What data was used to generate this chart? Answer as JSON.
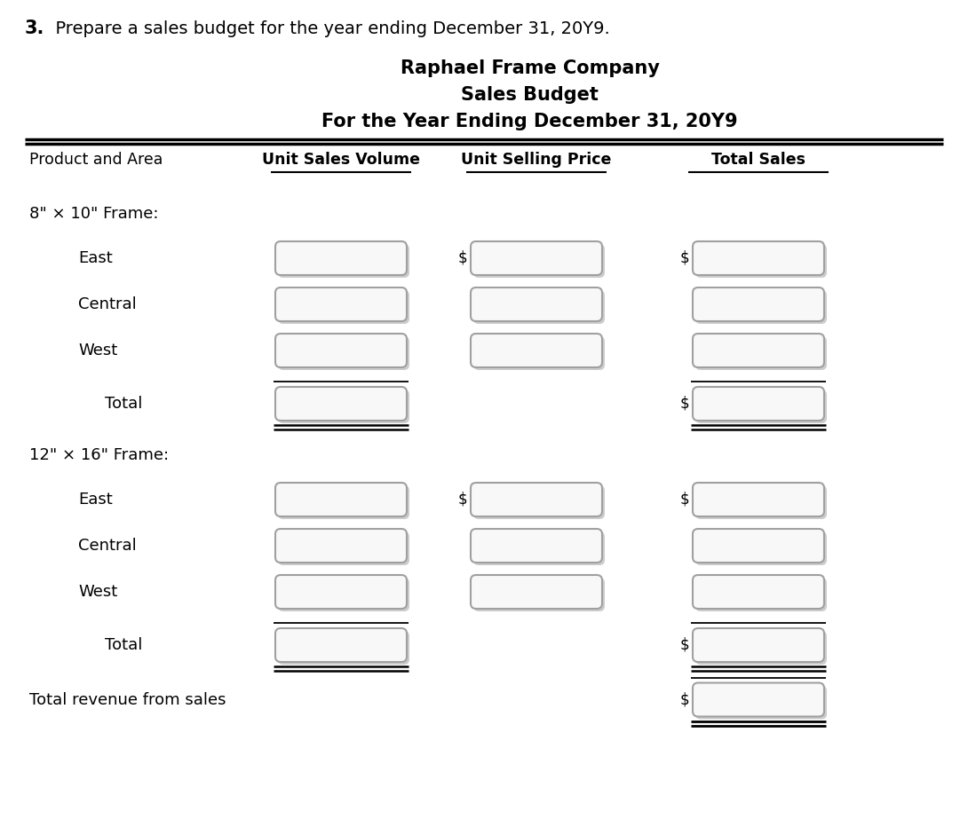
{
  "title1": "Raphael Frame Company",
  "title2": "Sales Budget",
  "title3": "For the Year Ending December 31, 20Y9",
  "question_bold": "3.",
  "question_rest": "  Prepare a sales budget for the year ending December 31, 20Y9.",
  "col_headers": [
    "Product and Area",
    "Unit Sales Volume",
    "Unit Selling Price",
    "Total Sales"
  ],
  "rows": [
    {
      "label": "8\" × 10\" Frame:",
      "indent": 0,
      "type": "section",
      "col1": false,
      "col2": false,
      "col3": false,
      "col1_ul": false,
      "col3_ul": false,
      "dollar1": false,
      "dollar2": false,
      "dollar3": false
    },
    {
      "label": "East",
      "indent": 1,
      "type": "data",
      "col1": true,
      "col2": true,
      "col3": true,
      "col1_ul": false,
      "col3_ul": false,
      "dollar1": false,
      "dollar2": true,
      "dollar3": true
    },
    {
      "label": "Central",
      "indent": 1,
      "type": "data",
      "col1": true,
      "col2": true,
      "col3": true,
      "col1_ul": false,
      "col3_ul": false,
      "dollar1": false,
      "dollar2": false,
      "dollar3": false
    },
    {
      "label": "West",
      "indent": 1,
      "type": "data",
      "col1": true,
      "col2": true,
      "col3": true,
      "col1_ul": false,
      "col3_ul": false,
      "dollar1": false,
      "dollar2": false,
      "dollar3": false
    },
    {
      "label": "Total",
      "indent": 2,
      "type": "total",
      "col1": true,
      "col2": false,
      "col3": true,
      "col1_ul": true,
      "col3_ul": true,
      "dollar1": false,
      "dollar2": false,
      "dollar3": true
    },
    {
      "label": "12\" × 16\" Frame:",
      "indent": 0,
      "type": "section",
      "col1": false,
      "col2": false,
      "col3": false,
      "col1_ul": false,
      "col3_ul": false,
      "dollar1": false,
      "dollar2": false,
      "dollar3": false
    },
    {
      "label": "East",
      "indent": 1,
      "type": "data",
      "col1": true,
      "col2": true,
      "col3": true,
      "col1_ul": false,
      "col3_ul": false,
      "dollar1": false,
      "dollar2": true,
      "dollar3": true
    },
    {
      "label": "Central",
      "indent": 1,
      "type": "data",
      "col1": true,
      "col2": true,
      "col3": true,
      "col1_ul": false,
      "col3_ul": false,
      "dollar1": false,
      "dollar2": false,
      "dollar3": false
    },
    {
      "label": "West",
      "indent": 1,
      "type": "data",
      "col1": true,
      "col2": true,
      "col3": true,
      "col1_ul": false,
      "col3_ul": false,
      "dollar1": false,
      "dollar2": false,
      "dollar3": false
    },
    {
      "label": "Total",
      "indent": 2,
      "type": "total",
      "col1": true,
      "col2": false,
      "col3": true,
      "col1_ul": true,
      "col3_ul": true,
      "dollar1": false,
      "dollar2": false,
      "dollar3": true
    },
    {
      "label": "Total revenue from sales",
      "indent": 0,
      "type": "grand_total",
      "col1": false,
      "col2": false,
      "col3": true,
      "col1_ul": false,
      "col3_ul": true,
      "dollar1": false,
      "dollar2": false,
      "dollar3": true
    }
  ],
  "bg_color": "#ffffff",
  "box_edge": "#a0a0a0",
  "box_fill": "#f8f8f8",
  "line_color": "#000000",
  "text_color": "#000000",
  "shadow_color": "#cccccc"
}
